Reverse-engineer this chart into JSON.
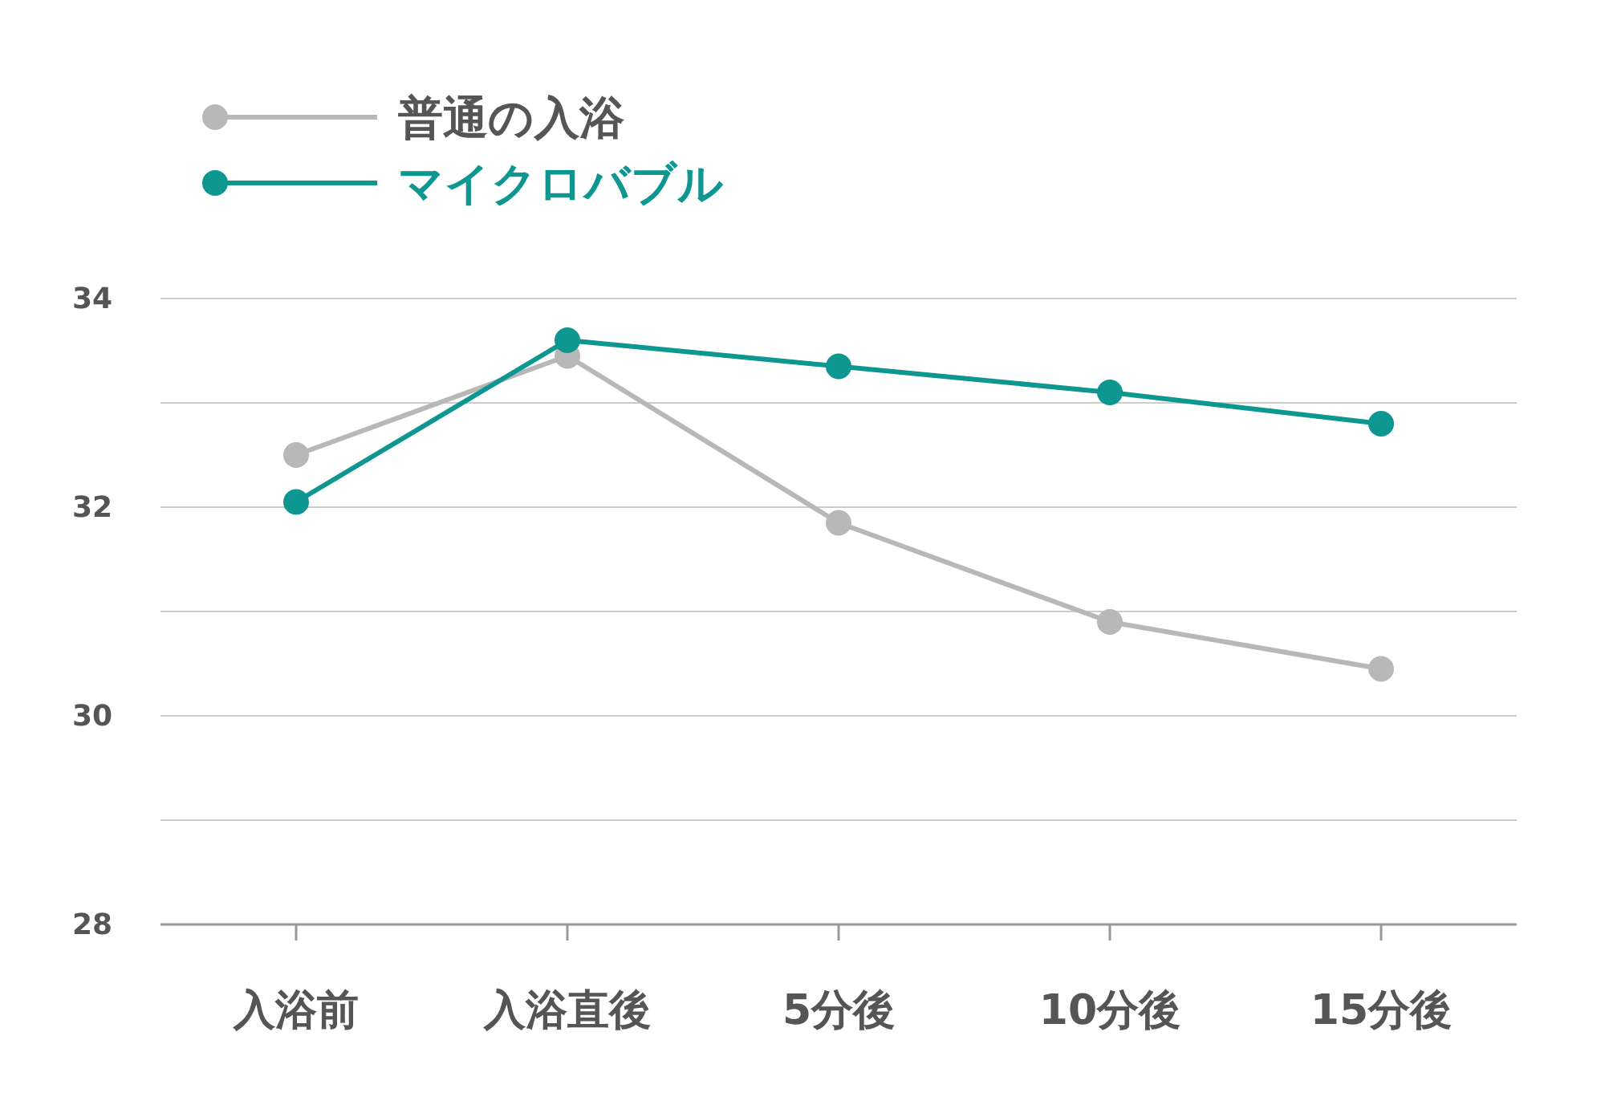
{
  "chart_data": {
    "type": "line",
    "categories": [
      "入浴前",
      "入浴直後",
      "5分後",
      "10分後",
      "15分後"
    ],
    "series": [
      {
        "name": "普通の入浴",
        "color": "#b8b8b8",
        "values": [
          32.5,
          33.45,
          31.85,
          30.9,
          30.45
        ]
      },
      {
        "name": "マイクロバブル",
        "color": "#0e9690",
        "values": [
          32.05,
          33.6,
          33.35,
          33.1,
          32.8
        ]
      }
    ],
    "ylim": [
      28,
      34
    ],
    "yticks": [
      28,
      {
        "value": 29,
        "label": null
      },
      30,
      {
        "value": 31,
        "label": null
      },
      32,
      {
        "value": 33,
        "label": null
      },
      34
    ],
    "grid": "y",
    "legend": "top left",
    "marker": "circle",
    "line_style": "solid"
  }
}
